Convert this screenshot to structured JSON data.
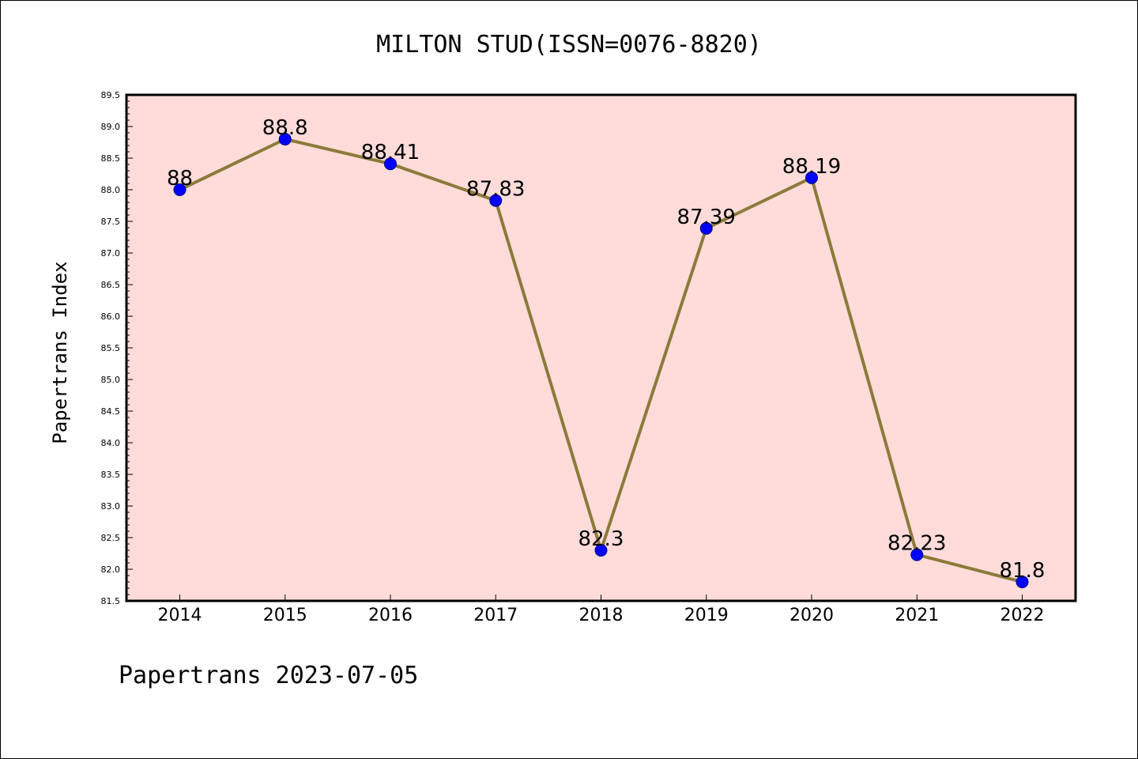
{
  "chart_data": {
    "type": "line",
    "title": "MILTON STUD(ISSN=0076-8820)",
    "ylabel": "Papertrans Index",
    "xlabel": "",
    "footer": "Papertrans 2023-07-05",
    "x": [
      "2014",
      "2015",
      "2016",
      "2017",
      "2018",
      "2019",
      "2020",
      "2021",
      "2022"
    ],
    "series": [
      {
        "values": [
          88,
          88.8,
          88.41,
          87.83,
          82.3,
          87.39,
          88.19,
          82.23,
          81.8
        ],
        "labels": [
          "88",
          "88.8",
          "88.41",
          "87.83",
          "82.3",
          "87.39",
          "88.19",
          "82.23",
          "81.8"
        ]
      }
    ],
    "ylim": [
      81.5,
      89.5
    ],
    "yticks": [
      "81.5",
      "82.0",
      "82.5",
      "83.0",
      "83.5",
      "84.0",
      "84.5",
      "85.0",
      "85.5",
      "86.0",
      "86.5",
      "87.0",
      "87.5",
      "88.0",
      "88.5",
      "89.0",
      "89.5"
    ],
    "grid": false,
    "legend": "none",
    "colors": {
      "plot_background": "#ffdcda",
      "line": "#8c7a3a",
      "marker": "#0000ff",
      "axis": "#000000"
    }
  }
}
